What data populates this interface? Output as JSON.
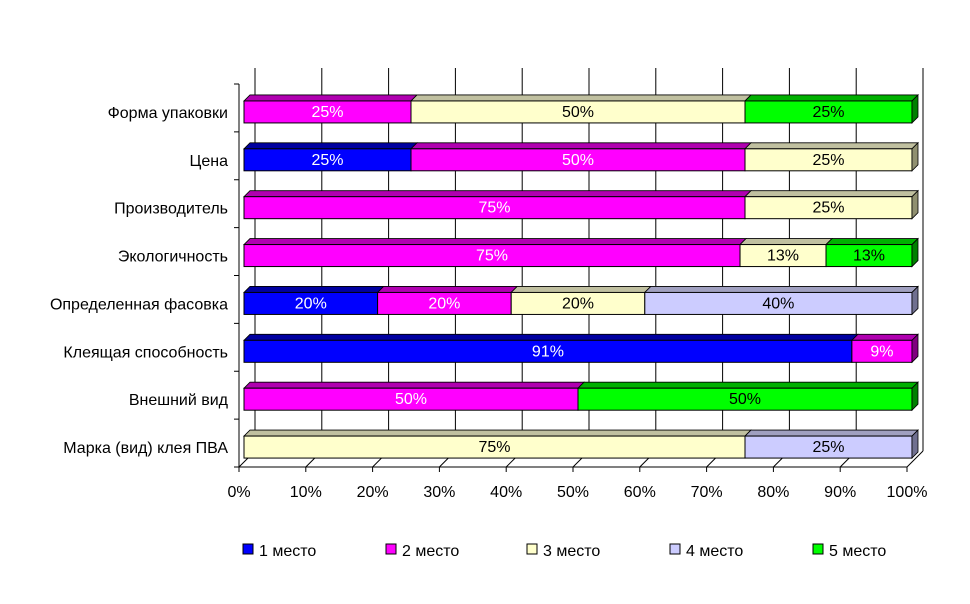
{
  "chart_data": {
    "type": "bar",
    "orientation": "horizontal",
    "stacked": "percent",
    "three_d": true,
    "title": "",
    "xlabel": "",
    "ylabel": "",
    "xlim": [
      0,
      100
    ],
    "x_ticks": [
      "0%",
      "10%",
      "20%",
      "30%",
      "40%",
      "50%",
      "60%",
      "70%",
      "80%",
      "90%",
      "100%"
    ],
    "grid": true,
    "legend_position": "bottom",
    "categories": [
      "Форма упаковки",
      "Цена",
      "Производитель",
      "Экологичность",
      "Определенная фасовка",
      "Клеящая способность",
      "Внешний вид",
      "Марка (вид) клея ПВА"
    ],
    "series": [
      {
        "name": "1 место",
        "color": "#0000FF",
        "top_color": "#0000A0",
        "side_color": "#000080",
        "label_color": "#FFFFFF",
        "values": [
          0,
          25,
          0,
          0,
          20,
          91,
          0,
          0
        ],
        "labels": [
          "",
          "25%",
          "",
          "",
          "20%",
          "91%",
          "",
          ""
        ]
      },
      {
        "name": "2 место",
        "color": "#FF00FF",
        "top_color": "#B000B0",
        "side_color": "#800080",
        "label_color": "#FFFFFF",
        "values": [
          25,
          50,
          75,
          75,
          20,
          9,
          50,
          0
        ],
        "labels": [
          "25%",
          "50%",
          "75%",
          "75%",
          "20%",
          "9%",
          "50%",
          ""
        ]
      },
      {
        "name": "3 место",
        "color": "#FFFFCC",
        "top_color": "#C0C0A0",
        "side_color": "#909070",
        "label_color": "#000000",
        "values": [
          50,
          25,
          25,
          13,
          20,
          0,
          0,
          75
        ],
        "labels": [
          "50%",
          "25%",
          "25%",
          "13%",
          "20%",
          "",
          "",
          "75%"
        ]
      },
      {
        "name": "4 место",
        "color": "#CCCCFF",
        "top_color": "#A0A0C0",
        "side_color": "#707090",
        "label_color": "#000000",
        "values": [
          0,
          0,
          0,
          0,
          40,
          0,
          0,
          25
        ],
        "labels": [
          "",
          "",
          "",
          "",
          "40%",
          "",
          "",
          "25%"
        ]
      },
      {
        "name": "5 место",
        "color": "#00FF00",
        "top_color": "#00B000",
        "side_color": "#008000",
        "label_color": "#000000",
        "values": [
          25,
          0,
          0,
          13,
          0,
          0,
          50,
          0
        ],
        "labels": [
          "25%",
          "",
          "",
          "13%",
          "",
          "",
          "50%",
          ""
        ]
      }
    ]
  }
}
